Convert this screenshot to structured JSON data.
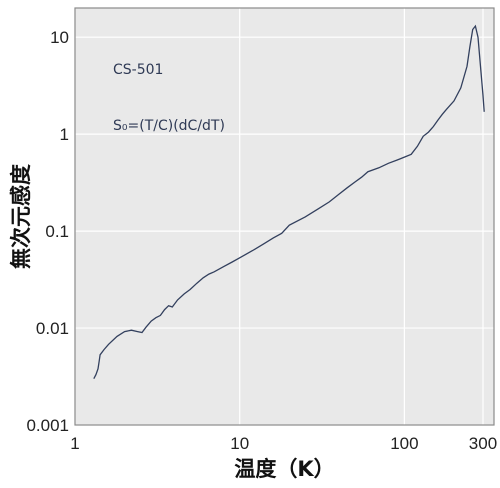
{
  "chart_data": {
    "type": "line",
    "xlabel": "温度（K）",
    "ylabel": "無次元感度",
    "x_scale": "log",
    "y_scale": "log",
    "xlim": [
      1,
      350
    ],
    "ylim": [
      0.001,
      20
    ],
    "grid": true,
    "x_ticks": [
      1,
      10,
      100,
      300
    ],
    "x_tick_labels": [
      "1",
      "10",
      "100",
      "300"
    ],
    "y_ticks": [
      0.001,
      0.01,
      0.1,
      1,
      10
    ],
    "y_tick_labels": [
      "0.001",
      "0.01",
      "0.1",
      "1",
      "10"
    ],
    "colors": {
      "plot_bg": "#e9e9e9",
      "line": "#33405e",
      "grid": "#ffffff",
      "frame": "#8a8a8a"
    },
    "annotations": [
      {
        "label": "CS-501"
      },
      {
        "label": "S₀=(T/C)(dC/dT)"
      }
    ],
    "series": [
      {
        "x": [
          1.3,
          1.34,
          1.38,
          1.4,
          1.42,
          1.5,
          1.6,
          1.8,
          2.0,
          2.2,
          2.4,
          2.55,
          2.7,
          2.9,
          3.1,
          3.3,
          3.5,
          3.7,
          3.9,
          4.2,
          4.6,
          5.0,
          5.5,
          6.0,
          6.5,
          7.0,
          8.0,
          9.0,
          10.0,
          12.0,
          14.0,
          16.0,
          18.0,
          20.0,
          25.0,
          30.0,
          35.0,
          40.0,
          45.0,
          50.0,
          55.0,
          60.0,
          70.0,
          80.0,
          90.0,
          95.0,
          100.0,
          110.0,
          120.0,
          130.0,
          140.0,
          150.0,
          160.0,
          170.0,
          180.0,
          200.0,
          220.0,
          240.0,
          250.0,
          260.0,
          270.0,
          280.0,
          290.0,
          300.0,
          305.0
        ],
        "y": [
          0.003,
          0.0033,
          0.0038,
          0.0045,
          0.0053,
          0.006,
          0.0068,
          0.0082,
          0.0092,
          0.0095,
          0.0092,
          0.009,
          0.0102,
          0.0118,
          0.0128,
          0.0135,
          0.0155,
          0.017,
          0.0165,
          0.0195,
          0.0225,
          0.025,
          0.029,
          0.033,
          0.036,
          0.038,
          0.043,
          0.048,
          0.053,
          0.063,
          0.074,
          0.085,
          0.095,
          0.115,
          0.14,
          0.17,
          0.2,
          0.24,
          0.28,
          0.32,
          0.36,
          0.41,
          0.45,
          0.5,
          0.54,
          0.56,
          0.58,
          0.62,
          0.75,
          0.95,
          1.05,
          1.2,
          1.4,
          1.6,
          1.8,
          2.2,
          3.0,
          5.0,
          8.0,
          12.0,
          13.0,
          10.0,
          5.0,
          2.5,
          1.7
        ]
      }
    ]
  }
}
